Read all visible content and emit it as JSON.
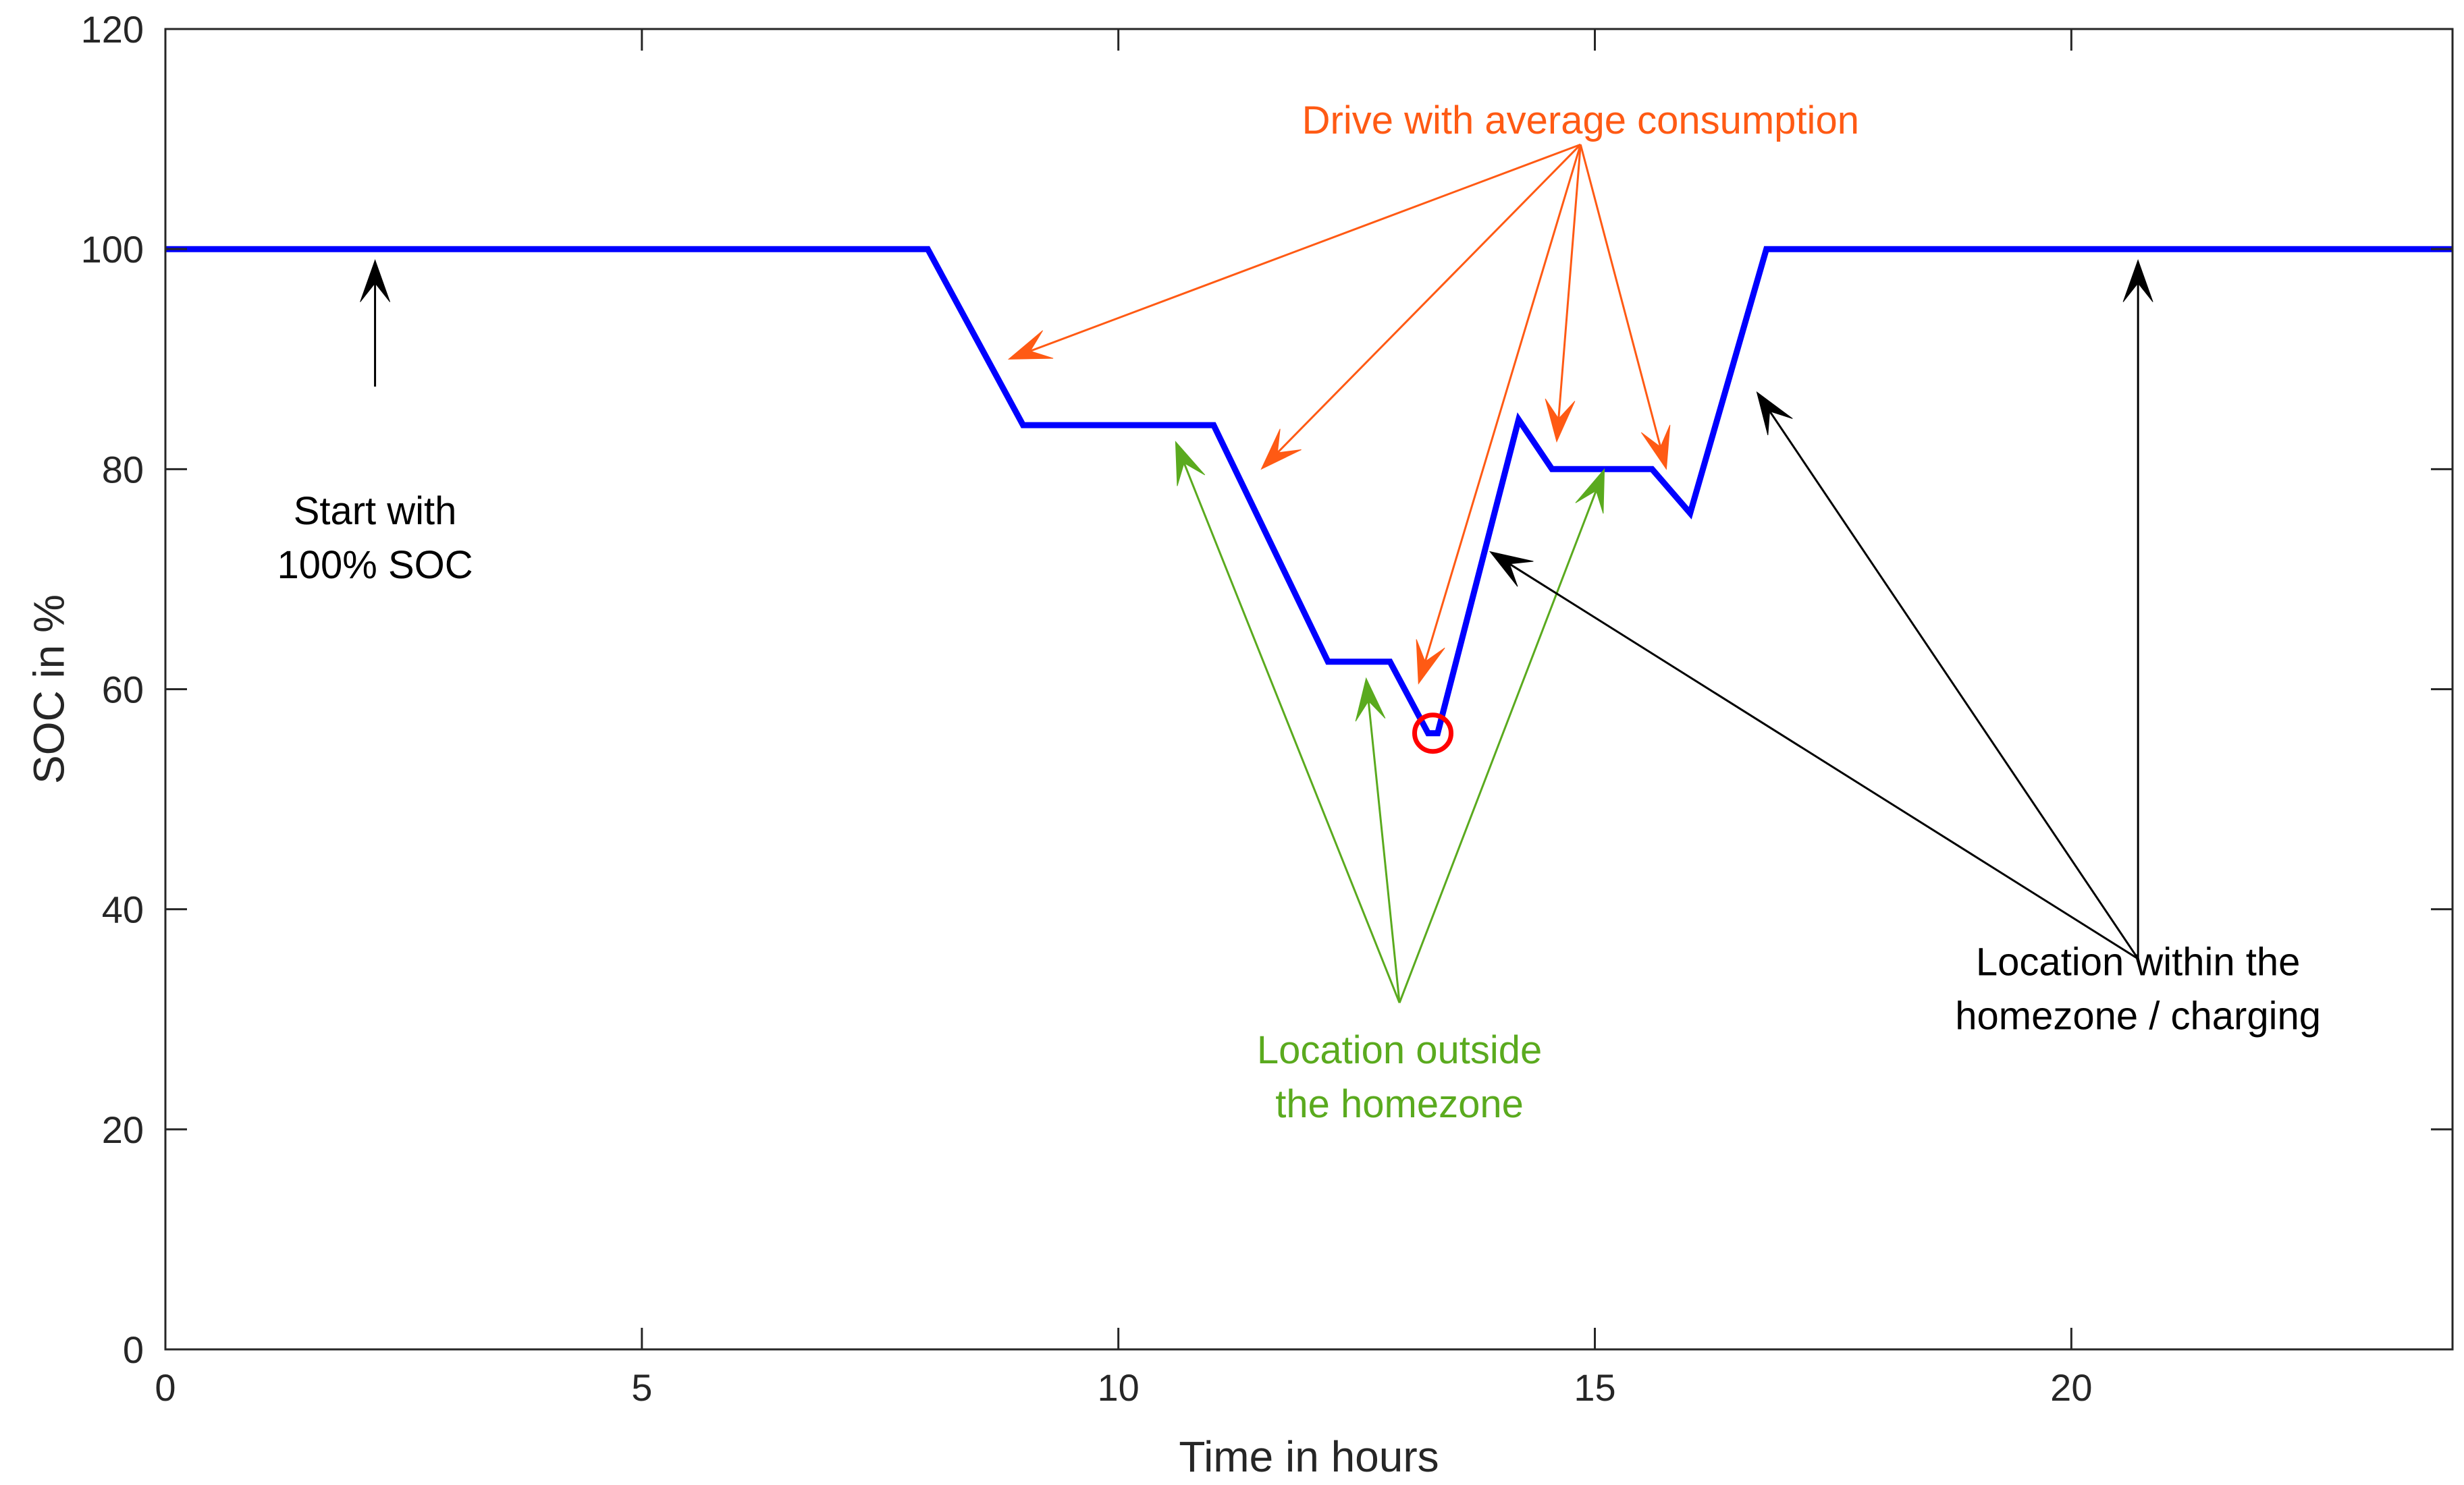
{
  "chart_data": {
    "type": "line",
    "title": "",
    "xlabel": "Time in hours",
    "ylabel": "SOC in %",
    "xlim": [
      0,
      24
    ],
    "ylim": [
      0,
      120
    ],
    "xticks": [
      0,
      5,
      10,
      15,
      20
    ],
    "yticks": [
      0,
      20,
      40,
      60,
      80,
      100,
      120
    ],
    "grid": false,
    "series": [
      {
        "name": "SOC",
        "color": "#0000ff",
        "x": [
          0,
          8.0,
          9.0,
          11.0,
          12.2,
          12.85,
          13.25,
          13.35,
          14.2,
          14.55,
          15.6,
          16.0,
          16.8,
          24
        ],
        "y": [
          100,
          100,
          84,
          84,
          62.5,
          62.5,
          56,
          56,
          84.5,
          80,
          80,
          76,
          100,
          100
        ]
      }
    ],
    "marker": {
      "name": "minimum-soc",
      "x": 13.3,
      "y": 56,
      "color": "#ff0000"
    },
    "annotations": [
      {
        "name": "start",
        "lines": [
          "Start with",
          "100% SOC"
        ],
        "color": "#000000",
        "label_at": [
          2.2,
          75
        ],
        "arrows": [
          {
            "from": [
              2.2,
              87.5
            ],
            "to": [
              2.2,
              99
            ]
          }
        ]
      },
      {
        "name": "drive",
        "lines": [
          "Drive with average consumption"
        ],
        "color": "#ff5a14",
        "label_at": [
          14.85,
          110.5
        ],
        "arrows": [
          {
            "from": [
              14.85,
              109.5
            ],
            "to": [
              8.85,
              90
            ]
          },
          {
            "from": [
              14.85,
              109.5
            ],
            "to": [
              11.5,
              80
            ]
          },
          {
            "from": [
              14.85,
              109.5
            ],
            "to": [
              13.15,
              60.5
            ]
          },
          {
            "from": [
              14.85,
              109.5
            ],
            "to": [
              14.6,
              82.5
            ]
          },
          {
            "from": [
              14.85,
              109.5
            ],
            "to": [
              15.75,
              80
            ]
          }
        ]
      },
      {
        "name": "outside",
        "lines": [
          "Location outside",
          "the homezone"
        ],
        "color": "#5aaa1e",
        "label_at": [
          12.95,
          26
        ],
        "arrows": [
          {
            "from": [
              12.95,
              31.5
            ],
            "to": [
              10.6,
              82.5
            ]
          },
          {
            "from": [
              12.95,
              31.5
            ],
            "to": [
              12.6,
              61
            ]
          },
          {
            "from": [
              12.95,
              31.5
            ],
            "to": [
              15.1,
              80
            ]
          }
        ]
      },
      {
        "name": "within",
        "lines": [
          "Location within the",
          "homezone / charging"
        ],
        "color": "#000000",
        "label_at": [
          20.7,
          34
        ],
        "arrows": [
          {
            "from": [
              20.7,
              35.5
            ],
            "to": [
              13.9,
              72.5
            ]
          },
          {
            "from": [
              20.7,
              35.5
            ],
            "to": [
              16.7,
              87
            ]
          },
          {
            "from": [
              20.7,
              35.5
            ],
            "to": [
              20.7,
              99
            ]
          }
        ]
      }
    ]
  }
}
